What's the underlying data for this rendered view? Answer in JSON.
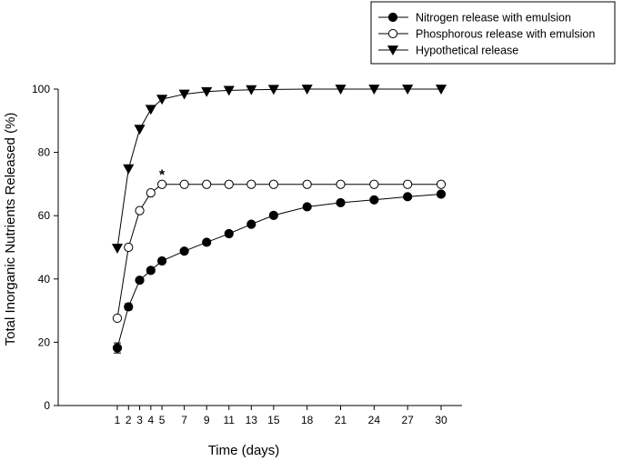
{
  "chart_data": {
    "type": "line",
    "title": "",
    "xlabel": "Time (days)",
    "ylabel": "Total Inorganic Nutrients Released (%)",
    "x_ticks": [
      "1",
      "2",
      "3",
      "4",
      "5",
      "7",
      "9",
      "11",
      "13",
      "15",
      "18",
      "21",
      "24",
      "27",
      "30"
    ],
    "y_ticks": [
      "0",
      "20",
      "40",
      "60",
      "80",
      "100"
    ],
    "ylim": [
      0,
      100
    ],
    "grid": false,
    "legend_position": "top-right",
    "annotations": [
      {
        "text": "*",
        "x": "5",
        "y": 74
      }
    ],
    "series": [
      {
        "name": "Nitrogen release with emulsion",
        "marker": "filled-circle",
        "color": "#000000",
        "values": [
          18.2,
          31.2,
          39.6,
          42.7,
          45.7,
          48.8,
          51.6,
          54.3,
          57.3,
          60.1,
          62.8,
          64.1,
          65.0,
          66.0,
          66.8
        ],
        "error": [
          1.6,
          1.0,
          0.8,
          0.6,
          0.5,
          0.4,
          0.4,
          0.4,
          0.4,
          0.4,
          0.4,
          0.4,
          0.4,
          0.4,
          0.4
        ]
      },
      {
        "name": "Phosphorous release with emulsion",
        "marker": "open-circle",
        "color": "#000000",
        "values": [
          27.6,
          50.0,
          61.6,
          67.2,
          69.9,
          69.9,
          69.9,
          69.9,
          69.9,
          69.9,
          69.9,
          69.9,
          69.9,
          69.9,
          69.9
        ],
        "error": [
          0,
          0,
          0,
          0,
          0,
          0,
          0,
          0,
          0,
          0,
          0,
          0,
          0,
          0,
          0
        ]
      },
      {
        "name": "Hypothetical release",
        "marker": "filled-triangle-down",
        "color": "#000000",
        "values": [
          49.7,
          74.8,
          87.3,
          93.6,
          96.8,
          98.4,
          99.2,
          99.6,
          99.8,
          99.9,
          100,
          100,
          100,
          100,
          100
        ],
        "error": [
          0,
          0,
          0,
          0,
          0,
          0,
          0,
          0,
          0,
          0,
          0,
          0,
          0,
          0,
          0
        ]
      }
    ]
  }
}
